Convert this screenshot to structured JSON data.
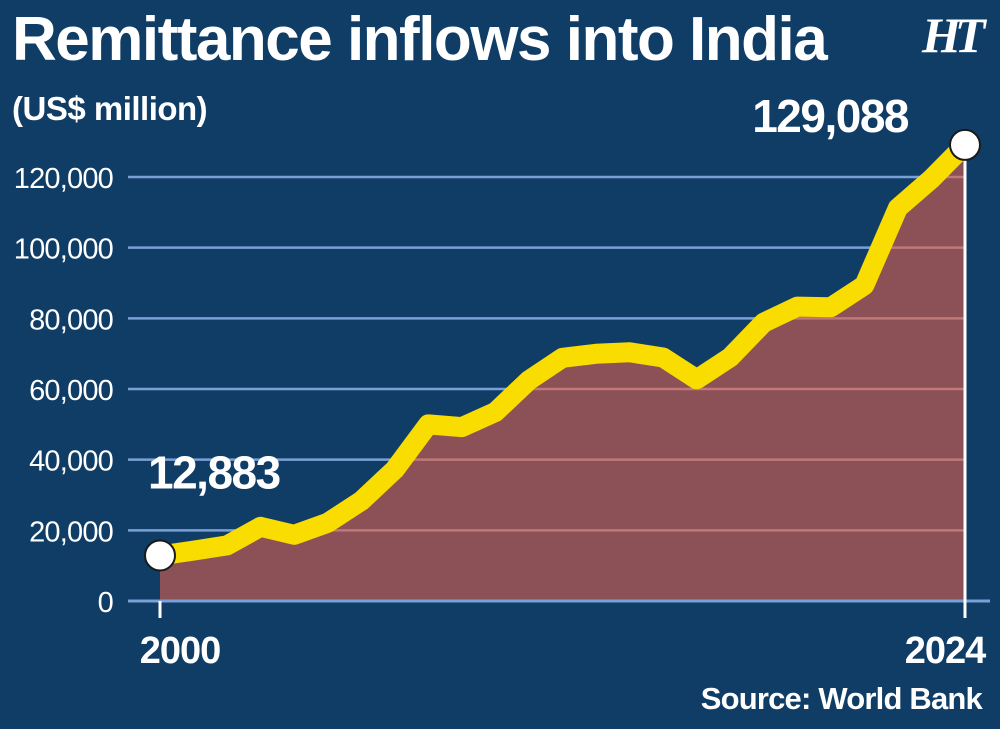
{
  "header": {
    "title": "Remittance inflows into India",
    "unit": "(US$ million)",
    "logo": "HT"
  },
  "footer": {
    "source": "Source: World Bank"
  },
  "colors": {
    "background": "#0f3d66",
    "line": "#f9dc00",
    "area": "#8c5157",
    "grid_blue": "#7aa0d6",
    "grid_red": "#c07878",
    "marker_fill": "#ffffff",
    "marker_stroke": "#1a1a1a"
  },
  "chart_data": {
    "type": "area",
    "title": "Remittance inflows into India",
    "ylabel": "(US$ million)",
    "xlabel": "",
    "ylim": [
      0,
      120000
    ],
    "yticks": [
      0,
      20000,
      40000,
      60000,
      80000,
      100000,
      120000
    ],
    "ytick_labels": [
      "0",
      "20,000",
      "40,000",
      "60,000",
      "80,000",
      "100,000",
      "120,000"
    ],
    "xtick_labels": [
      "2000",
      "2024"
    ],
    "grid": true,
    "x": [
      2000,
      2001,
      2002,
      2003,
      2004,
      2005,
      2006,
      2007,
      2008,
      2009,
      2010,
      2011,
      2012,
      2013,
      2014,
      2015,
      2016,
      2017,
      2018,
      2019,
      2020,
      2021,
      2022,
      2023,
      2024
    ],
    "series": [
      {
        "values": [
          12883,
          14273,
          15736,
          20999,
          18750,
          22125,
          28334,
          37217,
          49977,
          49204,
          53480,
          62499,
          68821,
          69970,
          70389,
          68910,
          62744,
          68967,
          78790,
          83332,
          83149,
          89375,
          111222,
          119500,
          129088
        ]
      }
    ],
    "annotations": [
      {
        "x": 2000,
        "y": 12883,
        "label": "12,883"
      },
      {
        "x": 2024,
        "y": 129088,
        "label": "129,088"
      }
    ]
  }
}
